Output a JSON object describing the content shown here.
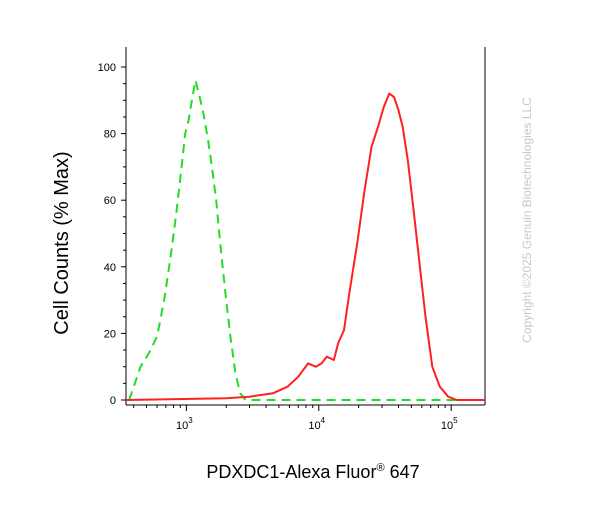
{
  "chart_data": {
    "type": "line",
    "xlabel": {
      "text": "PDXDC1-Alexa Fluor",
      "sup": "®",
      "suffix": " 647"
    },
    "ylabel": "Cell Counts (% Max)",
    "x_scale": "log",
    "xlim": [
      350,
      180000
    ],
    "ylim": [
      0,
      100
    ],
    "y_ticks": [
      0,
      20,
      40,
      60,
      80,
      100
    ],
    "y_tick_labels": [
      "0",
      "20",
      "40",
      "60",
      "80",
      "100"
    ],
    "x_ticks": [
      1000,
      10000,
      100000
    ],
    "x_tick_labels": [
      {
        "base": "10",
        "exp": "3"
      },
      {
        "base": "10",
        "exp": "4"
      },
      {
        "base": "10",
        "exp": "5"
      }
    ],
    "grid": false,
    "legend": "none",
    "series": [
      {
        "color": "#22dd22",
        "style": "dashed",
        "points": [
          [
            370,
            0
          ],
          [
            400,
            4
          ],
          [
            450,
            10
          ],
          [
            520,
            14
          ],
          [
            600,
            19
          ],
          [
            680,
            30
          ],
          [
            760,
            43
          ],
          [
            840,
            56
          ],
          [
            920,
            70
          ],
          [
            980,
            80
          ],
          [
            1040,
            84
          ],
          [
            1100,
            90
          ],
          [
            1170,
            96
          ],
          [
            1260,
            91
          ],
          [
            1360,
            85
          ],
          [
            1460,
            78
          ],
          [
            1560,
            70
          ],
          [
            1680,
            60
          ],
          [
            1800,
            47
          ],
          [
            1960,
            33
          ],
          [
            2150,
            19
          ],
          [
            2350,
            8
          ],
          [
            2550,
            2
          ],
          [
            2800,
            0
          ],
          [
            3500,
            0
          ],
          [
            6000,
            0
          ],
          [
            10000,
            0
          ],
          [
            20000,
            0
          ],
          [
            50000,
            0
          ],
          [
            180000,
            0
          ]
        ]
      },
      {
        "color": "#ff2020",
        "style": "solid",
        "points": [
          [
            350,
            0
          ],
          [
            2000,
            0.5
          ],
          [
            3000,
            1
          ],
          [
            4500,
            2
          ],
          [
            5800,
            4
          ],
          [
            7000,
            7
          ],
          [
            8300,
            11
          ],
          [
            9500,
            10
          ],
          [
            10500,
            11
          ],
          [
            11500,
            13
          ],
          [
            13000,
            12
          ],
          [
            14000,
            17
          ],
          [
            15500,
            21
          ],
          [
            17000,
            32
          ],
          [
            19500,
            47
          ],
          [
            22000,
            62
          ],
          [
            25000,
            76
          ],
          [
            28000,
            82
          ],
          [
            31000,
            88
          ],
          [
            34000,
            92
          ],
          [
            37000,
            91
          ],
          [
            40000,
            87
          ],
          [
            43000,
            82
          ],
          [
            47000,
            72
          ],
          [
            52000,
            57
          ],
          [
            58000,
            40
          ],
          [
            64000,
            25
          ],
          [
            72000,
            10
          ],
          [
            82000,
            4
          ],
          [
            95000,
            1
          ],
          [
            110000,
            0
          ],
          [
            180000,
            0
          ]
        ]
      }
    ]
  },
  "watermark": "Copyright ©2025 Genuin Biotechnologies LLC"
}
